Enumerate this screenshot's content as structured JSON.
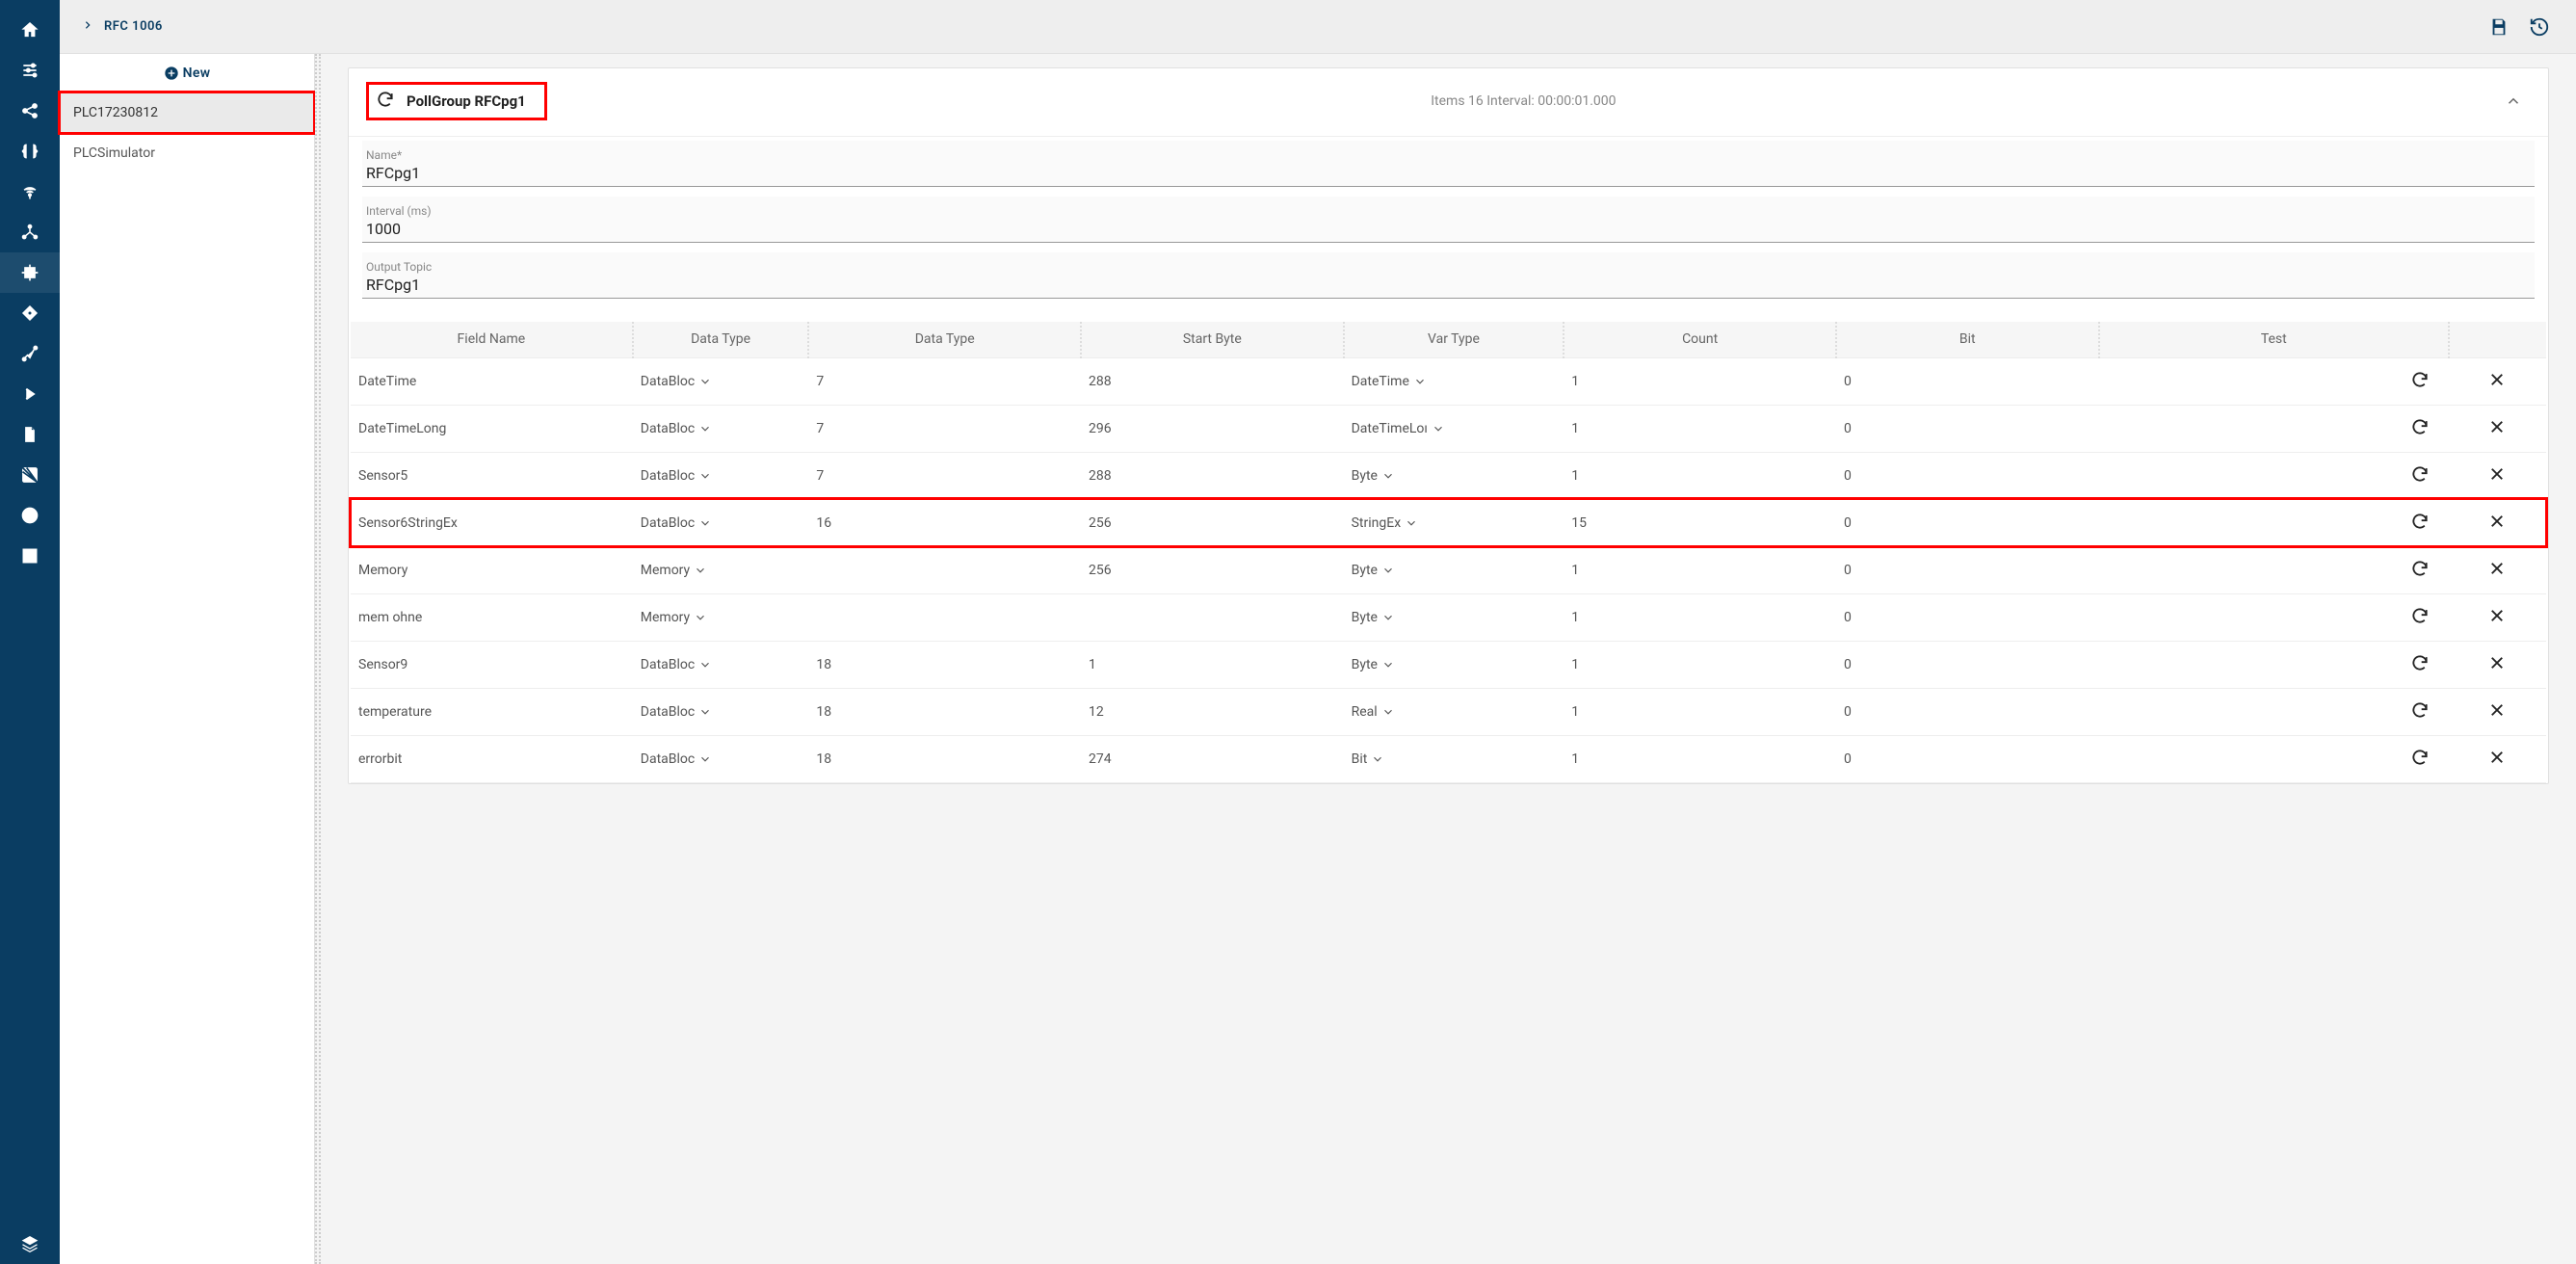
{
  "breadcrumb": {
    "label": "RFC 1006"
  },
  "new_button": {
    "label": "New"
  },
  "plc_list": [
    {
      "name": "PLC17230812",
      "selected": true
    },
    {
      "name": "PLCSimulator",
      "selected": false
    }
  ],
  "pollgroup": {
    "title": "PollGroup RFCpg1",
    "meta": "Items 16  Interval: 00:00:01.000",
    "fields": {
      "name_label": "Name*",
      "name_value": "RFCpg1",
      "interval_label": "Interval (ms)",
      "interval_value": "1000",
      "topic_label": "Output Topic",
      "topic_value": "RFCpg1"
    }
  },
  "table": {
    "headers": {
      "field_name": "Field Name",
      "data_type_short": "Data Type",
      "data_type": "Data Type",
      "start_byte": "Start Byte",
      "var_type": "Var Type",
      "count": "Count",
      "bit": "Bit",
      "test": "Test"
    },
    "rows": [
      {
        "field": "DateTime",
        "dtype": "DataBloc",
        "datatype": "7",
        "start": "288",
        "vartype": "DateTime",
        "count": "1",
        "bit": "0",
        "hl": false
      },
      {
        "field": "DateTimeLong",
        "dtype": "DataBloc",
        "datatype": "7",
        "start": "296",
        "vartype": "DateTimeLoı",
        "count": "1",
        "bit": "0",
        "hl": false
      },
      {
        "field": "Sensor5",
        "dtype": "DataBloc",
        "datatype": "7",
        "start": "288",
        "vartype": "Byte",
        "count": "1",
        "bit": "0",
        "hl": false
      },
      {
        "field": "Sensor6StringEx",
        "dtype": "DataBloc",
        "datatype": "16",
        "start": "256",
        "vartype": "StringEx",
        "count": "15",
        "bit": "0",
        "hl": true
      },
      {
        "field": "Memory",
        "dtype": "Memory",
        "datatype": "",
        "start": "256",
        "vartype": "Byte",
        "count": "1",
        "bit": "0",
        "hl": false
      },
      {
        "field": "mem ohne",
        "dtype": "Memory",
        "datatype": "",
        "start": "",
        "vartype": "Byte",
        "count": "1",
        "bit": "0",
        "hl": false
      },
      {
        "field": "Sensor9",
        "dtype": "DataBloc",
        "datatype": "18",
        "start": "1",
        "vartype": "Byte",
        "count": "1",
        "bit": "0",
        "hl": false
      },
      {
        "field": "temperature",
        "dtype": "DataBloc",
        "datatype": "18",
        "start": "12",
        "vartype": "Real",
        "count": "1",
        "bit": "0",
        "hl": false
      },
      {
        "field": "errorbit",
        "dtype": "DataBloc",
        "datatype": "18",
        "start": "274",
        "vartype": "Bit",
        "count": "1",
        "bit": "0",
        "hl": false
      }
    ]
  },
  "colors": {
    "nav_bg": "#0a3d62",
    "highlight": "#ff0000",
    "page_bg": "#f4f4f4"
  }
}
